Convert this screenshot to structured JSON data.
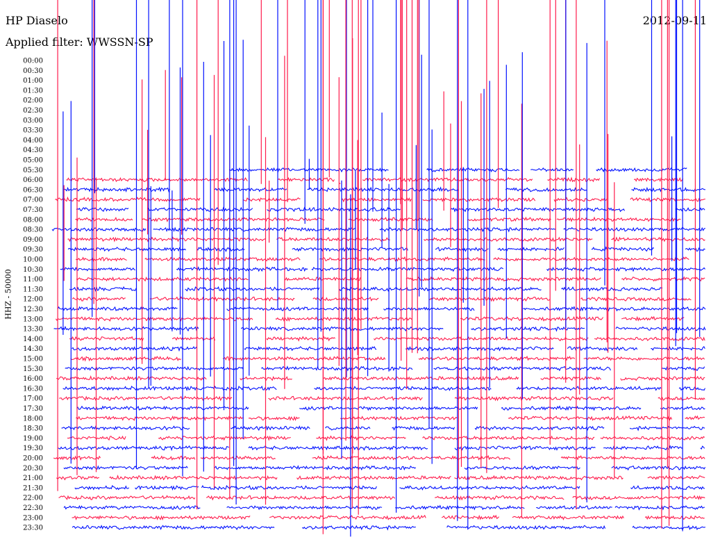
{
  "header": {
    "station": "HP Diaselo",
    "date": "2012-09-11",
    "filter": "Applied filter: WWSSN-SP"
  },
  "chart_data": {
    "type": "line",
    "title": "HP Diaselo",
    "date": "2012-09-11",
    "ylabel": "HHZ - 50000",
    "row_labels": [
      "00:00",
      "00:30",
      "01:00",
      "01:30",
      "02:00",
      "02:30",
      "03:00",
      "03:30",
      "04:00",
      "04:30",
      "05:00",
      "05:30",
      "06:00",
      "06:30",
      "07:00",
      "07:30",
      "08:00",
      "08:30",
      "09:00",
      "09:30",
      "10:00",
      "10:30",
      "11:00",
      "11:30",
      "12:00",
      "12:30",
      "13:00",
      "13:30",
      "14:00",
      "14:30",
      "15:00",
      "15:30",
      "16:00",
      "16:30",
      "17:00",
      "17:30",
      "18:00",
      "18:30",
      "19:00",
      "19:30",
      "20:00",
      "20:30",
      "21:00",
      "21:30",
      "22:00",
      "22:30",
      "23:00",
      "23:30"
    ],
    "data_start_row": 11,
    "colors": {
      "even": "#ff1a4b",
      "odd": "#0010ff"
    },
    "grid": false,
    "legend": "none"
  }
}
